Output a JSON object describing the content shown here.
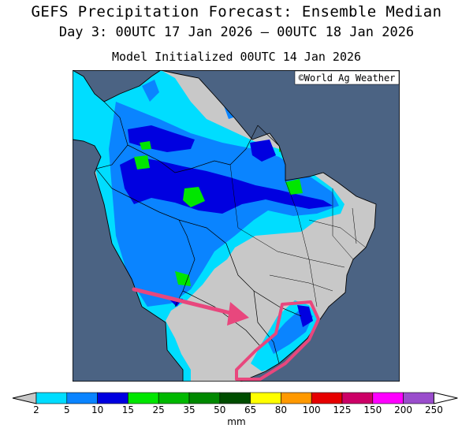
{
  "header": {
    "title": "GEFS Precipitation Forecast: Ensemble Median",
    "period": "Day 3: 00UTC 17 Jan 2026 — 00UTC 18 Jan 2026",
    "init": "Model Initialized 00UTC 14 Jan 2026"
  },
  "map": {
    "credit": "©World Ag Weather",
    "ocean_color": "#4b6383",
    "land_color": "#c8c8c8",
    "annotation_color": "#e8477d"
  },
  "colorbar": {
    "unit": "mm",
    "labels": [
      "2",
      "5",
      "10",
      "15",
      "25",
      "35",
      "50",
      "65",
      "80",
      "100",
      "125",
      "150",
      "200",
      "250"
    ],
    "colors": [
      "#00ddff",
      "#0a84ff",
      "#0000e0",
      "#00e600",
      "#00b800",
      "#008800",
      "#004d00",
      "#ffff00",
      "#ff9900",
      "#e60000",
      "#cc0066",
      "#ff00ff",
      "#9a4dcc"
    ],
    "under_color": "#c8c8c8",
    "over_color": "#ffffff"
  }
}
